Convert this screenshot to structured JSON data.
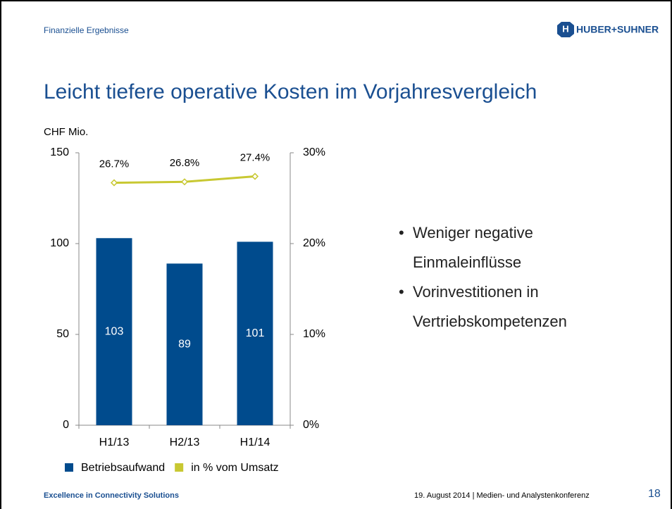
{
  "header": {
    "section": "Finanzielle Ergebnisse",
    "logo": "HUBER+SUHNER"
  },
  "title": "Leicht tiefere operative Kosten im Vorjahresvergleich",
  "chart_data": {
    "type": "bar",
    "y_label": "CHF Mio.",
    "categories": [
      "H1/13",
      "H2/13",
      "H1/14"
    ],
    "series": [
      {
        "name": "Betriebsaufwand",
        "color": "#004b8d",
        "values": [
          103,
          89,
          101
        ]
      },
      {
        "name": "in % vom Umsatz",
        "color": "#c8c832",
        "type": "line",
        "axis": "y2",
        "values": [
          26.7,
          26.8,
          27.4
        ],
        "value_labels": [
          "26.7%",
          "26.8%",
          "27.4%"
        ]
      }
    ],
    "ylim": [
      0,
      150
    ],
    "yticks": [
      0,
      50,
      100,
      150
    ],
    "y2lim": [
      0,
      30
    ],
    "y2ticks": [
      {
        "value": 0,
        "label": "0%"
      },
      {
        "value": 10,
        "label": "10%"
      },
      {
        "value": 20,
        "label": "20%"
      },
      {
        "value": 30,
        "label": "30%"
      }
    ]
  },
  "bullets": [
    "Weniger negative Einmaleinflüsse",
    "Vorinvestitionen in Vertriebskompetenzen"
  ],
  "footer": {
    "tagline": "Excellence in Connectivity Solutions",
    "info": "19. August 2014 | Medien- und Analystenkonferenz",
    "page": "18"
  }
}
